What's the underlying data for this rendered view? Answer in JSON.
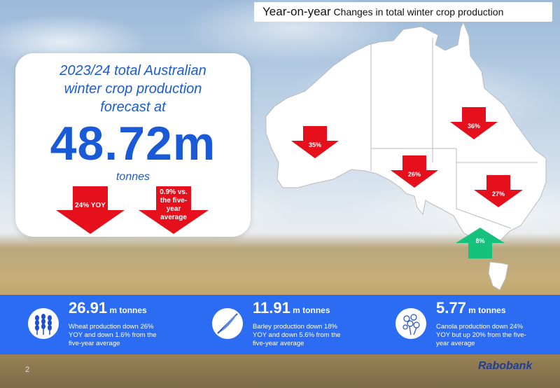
{
  "title": {
    "part1": "Year-on-year",
    "part2": " Changes in total winter crop production"
  },
  "forecast": {
    "line1": "2023/24 total Australian",
    "line2": "winter crop production",
    "line3": "forecast at",
    "value": "48.72m",
    "unit": "tonnes",
    "arrow_yoy": "24% YOY",
    "arrow_avg_l1": "0.9% vs.",
    "arrow_avg_l2": "the five-",
    "arrow_avg_l3": "year",
    "arrow_avg_l4": "average"
  },
  "map": {
    "wa": "35%",
    "qld": "36%",
    "sa": "26%",
    "nsw": "27%",
    "vic": "8%",
    "colors": {
      "down": "#e5101c",
      "up": "#16c07d"
    }
  },
  "stats": [
    {
      "value": "26.91",
      "unit": " m tonnes",
      "icon": "wheat-icon",
      "desc": "Wheat production down 26% YOY and down 1.6% from the five-year average"
    },
    {
      "value": "11.91",
      "unit": " m tonnes",
      "icon": "barley-icon",
      "desc": "Barley production down 18% YOY and down 5.6% from the five-year average"
    },
    {
      "value": "5.77",
      "unit": " m tonnes",
      "icon": "canola-icon",
      "desc": "Canola production down 24% YOY but up 20% from the five-year average"
    }
  ],
  "page_number": "2",
  "logo": "Rabobank"
}
